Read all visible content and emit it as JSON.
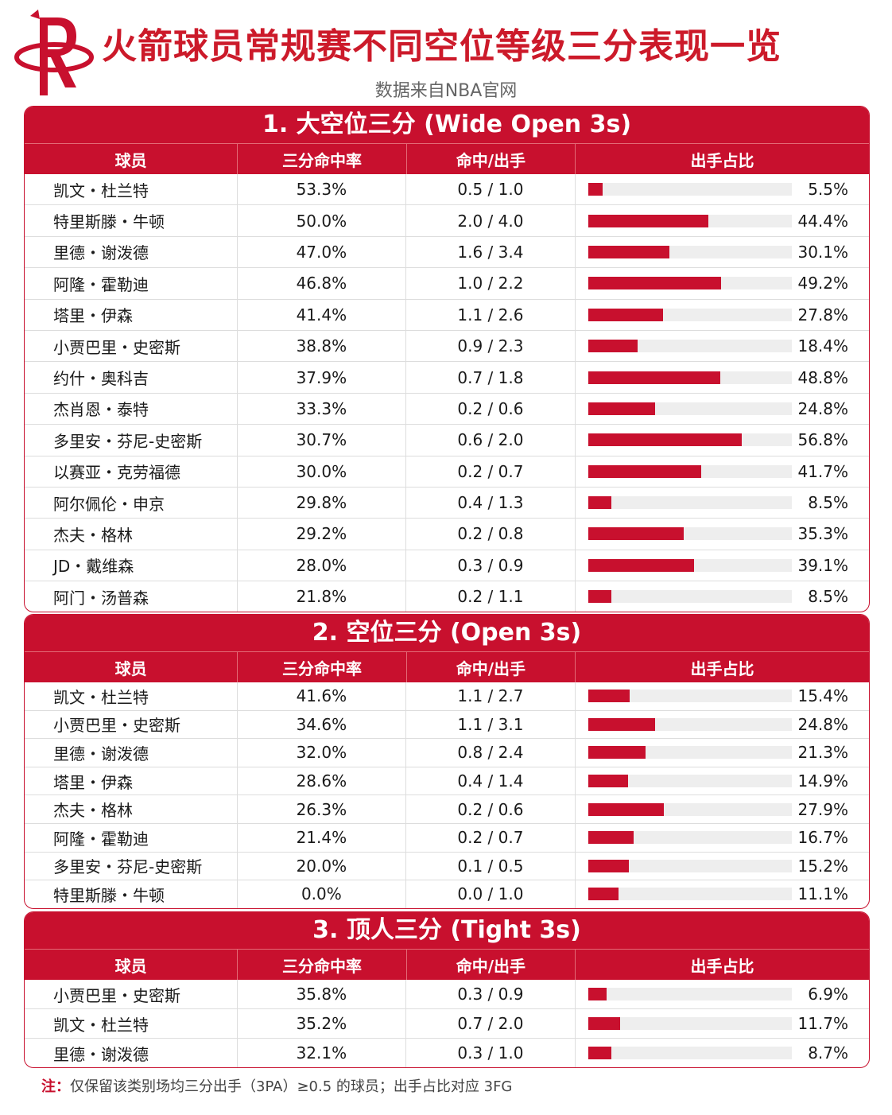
{
  "header": {
    "title": "火箭球员常规赛不同空位等级三分表现一览",
    "subtitle": "数据来自NBA官网"
  },
  "columns": {
    "player": "球员",
    "pct": "三分命中率",
    "ma": "命中/出手",
    "share": "出手占比"
  },
  "colors": {
    "accent": "#c8102e",
    "bar_bg": "#eeeeee"
  },
  "chart_data": [
    {
      "type": "table",
      "title": "1. 大空位三分 (Wide Open 3s)",
      "rows": [
        {
          "player": "凯文・杜兰特",
          "pct": "53.3%",
          "ma": "0.5 / 1.0",
          "share": "5.5%",
          "share_value": 5.5
        },
        {
          "player": "特里斯滕・牛顿",
          "pct": "50.0%",
          "ma": "2.0 / 4.0",
          "share": "44.4%",
          "share_value": 44.4
        },
        {
          "player": "里德・谢泼德",
          "pct": "47.0%",
          "ma": "1.6 / 3.4",
          "share": "30.1%",
          "share_value": 30.1
        },
        {
          "player": "阿隆・霍勒迪",
          "pct": "46.8%",
          "ma": "1.0 / 2.2",
          "share": "49.2%",
          "share_value": 49.2
        },
        {
          "player": "塔里・伊森",
          "pct": "41.4%",
          "ma": "1.1 / 2.6",
          "share": "27.8%",
          "share_value": 27.8
        },
        {
          "player": "小贾巴里・史密斯",
          "pct": "38.8%",
          "ma": "0.9 / 2.3",
          "share": "18.4%",
          "share_value": 18.4
        },
        {
          "player": "约什・奥科吉",
          "pct": "37.9%",
          "ma": "0.7 / 1.8",
          "share": "48.8%",
          "share_value": 48.8
        },
        {
          "player": "杰肖恩・泰特",
          "pct": "33.3%",
          "ma": "0.2 / 0.6",
          "share": "24.8%",
          "share_value": 24.8
        },
        {
          "player": "多里安・芬尼-史密斯",
          "pct": "30.7%",
          "ma": "0.6 / 2.0",
          "share": "56.8%",
          "share_value": 56.8
        },
        {
          "player": "以赛亚・克劳福德",
          "pct": "30.0%",
          "ma": "0.2 / 0.7",
          "share": "41.7%",
          "share_value": 41.7
        },
        {
          "player": "阿尔佩伦・申京",
          "pct": "29.8%",
          "ma": "0.4 / 1.3",
          "share": "8.5%",
          "share_value": 8.5
        },
        {
          "player": "杰夫・格林",
          "pct": "29.2%",
          "ma": "0.2 / 0.8",
          "share": "35.3%",
          "share_value": 35.3
        },
        {
          "player": "JD・戴维森",
          "pct": "28.0%",
          "ma": "0.3 / 0.9",
          "share": "39.1%",
          "share_value": 39.1
        },
        {
          "player": "阿门・汤普森",
          "pct": "21.8%",
          "ma": "0.2 / 1.1",
          "share": "8.5%",
          "share_value": 8.5
        }
      ]
    },
    {
      "type": "table",
      "title": "2. 空位三分 (Open 3s)",
      "rows": [
        {
          "player": "凯文・杜兰特",
          "pct": "41.6%",
          "ma": "1.1 / 2.7",
          "share": "15.4%",
          "share_value": 15.4
        },
        {
          "player": "小贾巴里・史密斯",
          "pct": "34.6%",
          "ma": "1.1 / 3.1",
          "share": "24.8%",
          "share_value": 24.8
        },
        {
          "player": "里德・谢泼德",
          "pct": "32.0%",
          "ma": "0.8 / 2.4",
          "share": "21.3%",
          "share_value": 21.3
        },
        {
          "player": "塔里・伊森",
          "pct": "28.6%",
          "ma": "0.4 / 1.4",
          "share": "14.9%",
          "share_value": 14.9
        },
        {
          "player": "杰夫・格林",
          "pct": "26.3%",
          "ma": "0.2 / 0.6",
          "share": "27.9%",
          "share_value": 27.9
        },
        {
          "player": "阿隆・霍勒迪",
          "pct": "21.4%",
          "ma": "0.2 / 0.7",
          "share": "16.7%",
          "share_value": 16.7
        },
        {
          "player": "多里安・芬尼-史密斯",
          "pct": "20.0%",
          "ma": "0.1 / 0.5",
          "share": "15.2%",
          "share_value": 15.2
        },
        {
          "player": "特里斯滕・牛顿",
          "pct": "0.0%",
          "ma": "0.0 / 1.0",
          "share": "11.1%",
          "share_value": 11.1
        }
      ]
    },
    {
      "type": "table",
      "title": "3. 顶人三分 (Tight 3s)",
      "rows": [
        {
          "player": "小贾巴里・史密斯",
          "pct": "35.8%",
          "ma": "0.3 / 0.9",
          "share": "6.9%",
          "share_value": 6.9
        },
        {
          "player": "凯文・杜兰特",
          "pct": "35.2%",
          "ma": "0.7 / 2.0",
          "share": "11.7%",
          "share_value": 11.7
        },
        {
          "player": "里德・谢泼德",
          "pct": "32.1%",
          "ma": "0.3 / 1.0",
          "share": "8.7%",
          "share_value": 8.7
        }
      ]
    }
  ],
  "note": {
    "label": "注：",
    "text": "仅保留该类别场均三分出手（3PA）≥0.5 的球员；出手占比对应 3FG"
  }
}
